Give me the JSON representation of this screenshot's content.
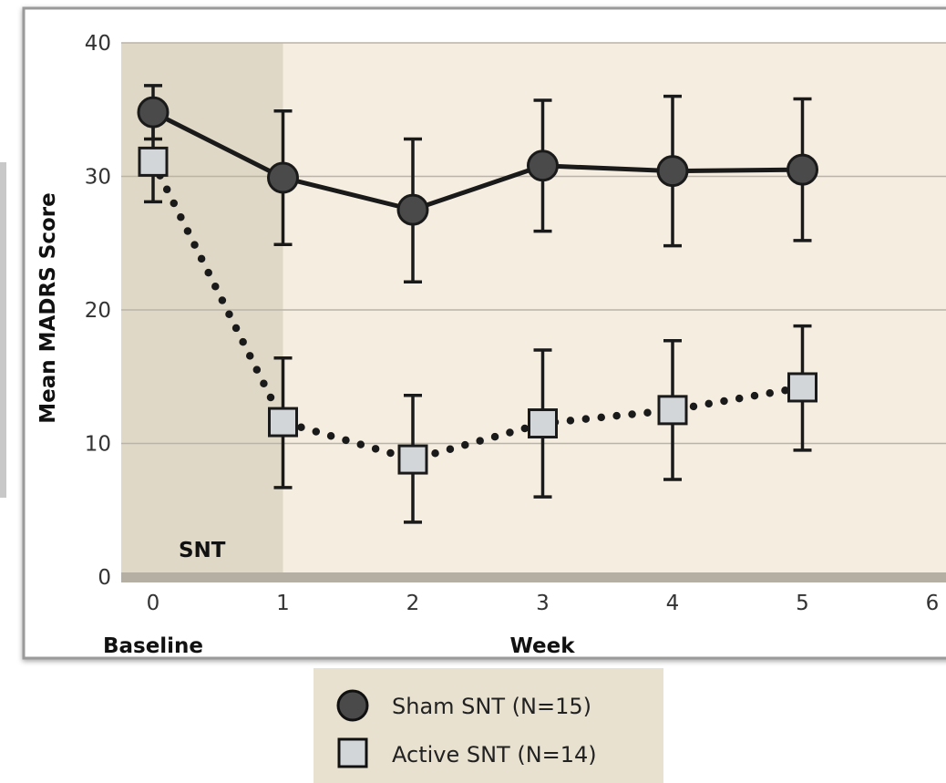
{
  "chart_data": {
    "type": "line",
    "xlabel": "Week",
    "x_baseline_label": "Baseline",
    "ylabel": "Mean MADRS Score",
    "xlim": [
      0,
      6
    ],
    "ylim": [
      0,
      40
    ],
    "x_ticks": [
      0,
      1,
      2,
      3,
      4,
      5,
      6
    ],
    "y_ticks": [
      0,
      10,
      20,
      30,
      40
    ],
    "grid": true,
    "shaded_region": {
      "label": "SNT",
      "x_start": 0,
      "x_end": 1
    },
    "legend_position": "bottom",
    "series": [
      {
        "name": "Sham SNT (N=15)",
        "marker": "circle",
        "line_style": "solid",
        "x": [
          0,
          1,
          2,
          3,
          4,
          5
        ],
        "y": [
          34.8,
          29.9,
          27.5,
          30.8,
          30.4,
          30.5
        ],
        "err_low": [
          32.8,
          24.9,
          22.1,
          25.9,
          24.8,
          25.2
        ],
        "err_high": [
          36.8,
          34.9,
          32.8,
          35.7,
          36.0,
          35.8
        ]
      },
      {
        "name": "Active SNT (N=14)",
        "marker": "square",
        "line_style": "dotted",
        "x": [
          0,
          1,
          2,
          3,
          4,
          5
        ],
        "y": [
          31.1,
          11.6,
          8.8,
          11.5,
          12.5,
          14.2
        ],
        "err_low": [
          28.1,
          6.7,
          4.1,
          6.0,
          7.3,
          9.5
        ],
        "err_high": [
          34.1,
          16.4,
          13.6,
          17.0,
          17.7,
          18.8
        ]
      }
    ]
  },
  "colors": {
    "plot_background": "#f5ede0",
    "shaded_band": "#e0d8c6",
    "grid": "#b9b3a8",
    "x_axis_bar": "#b5aea3",
    "sham_marker": "#4a4a4a",
    "active_marker": "#d3d6d9",
    "line": "#1a1a1a",
    "legend_background": "#e8e1d0"
  }
}
